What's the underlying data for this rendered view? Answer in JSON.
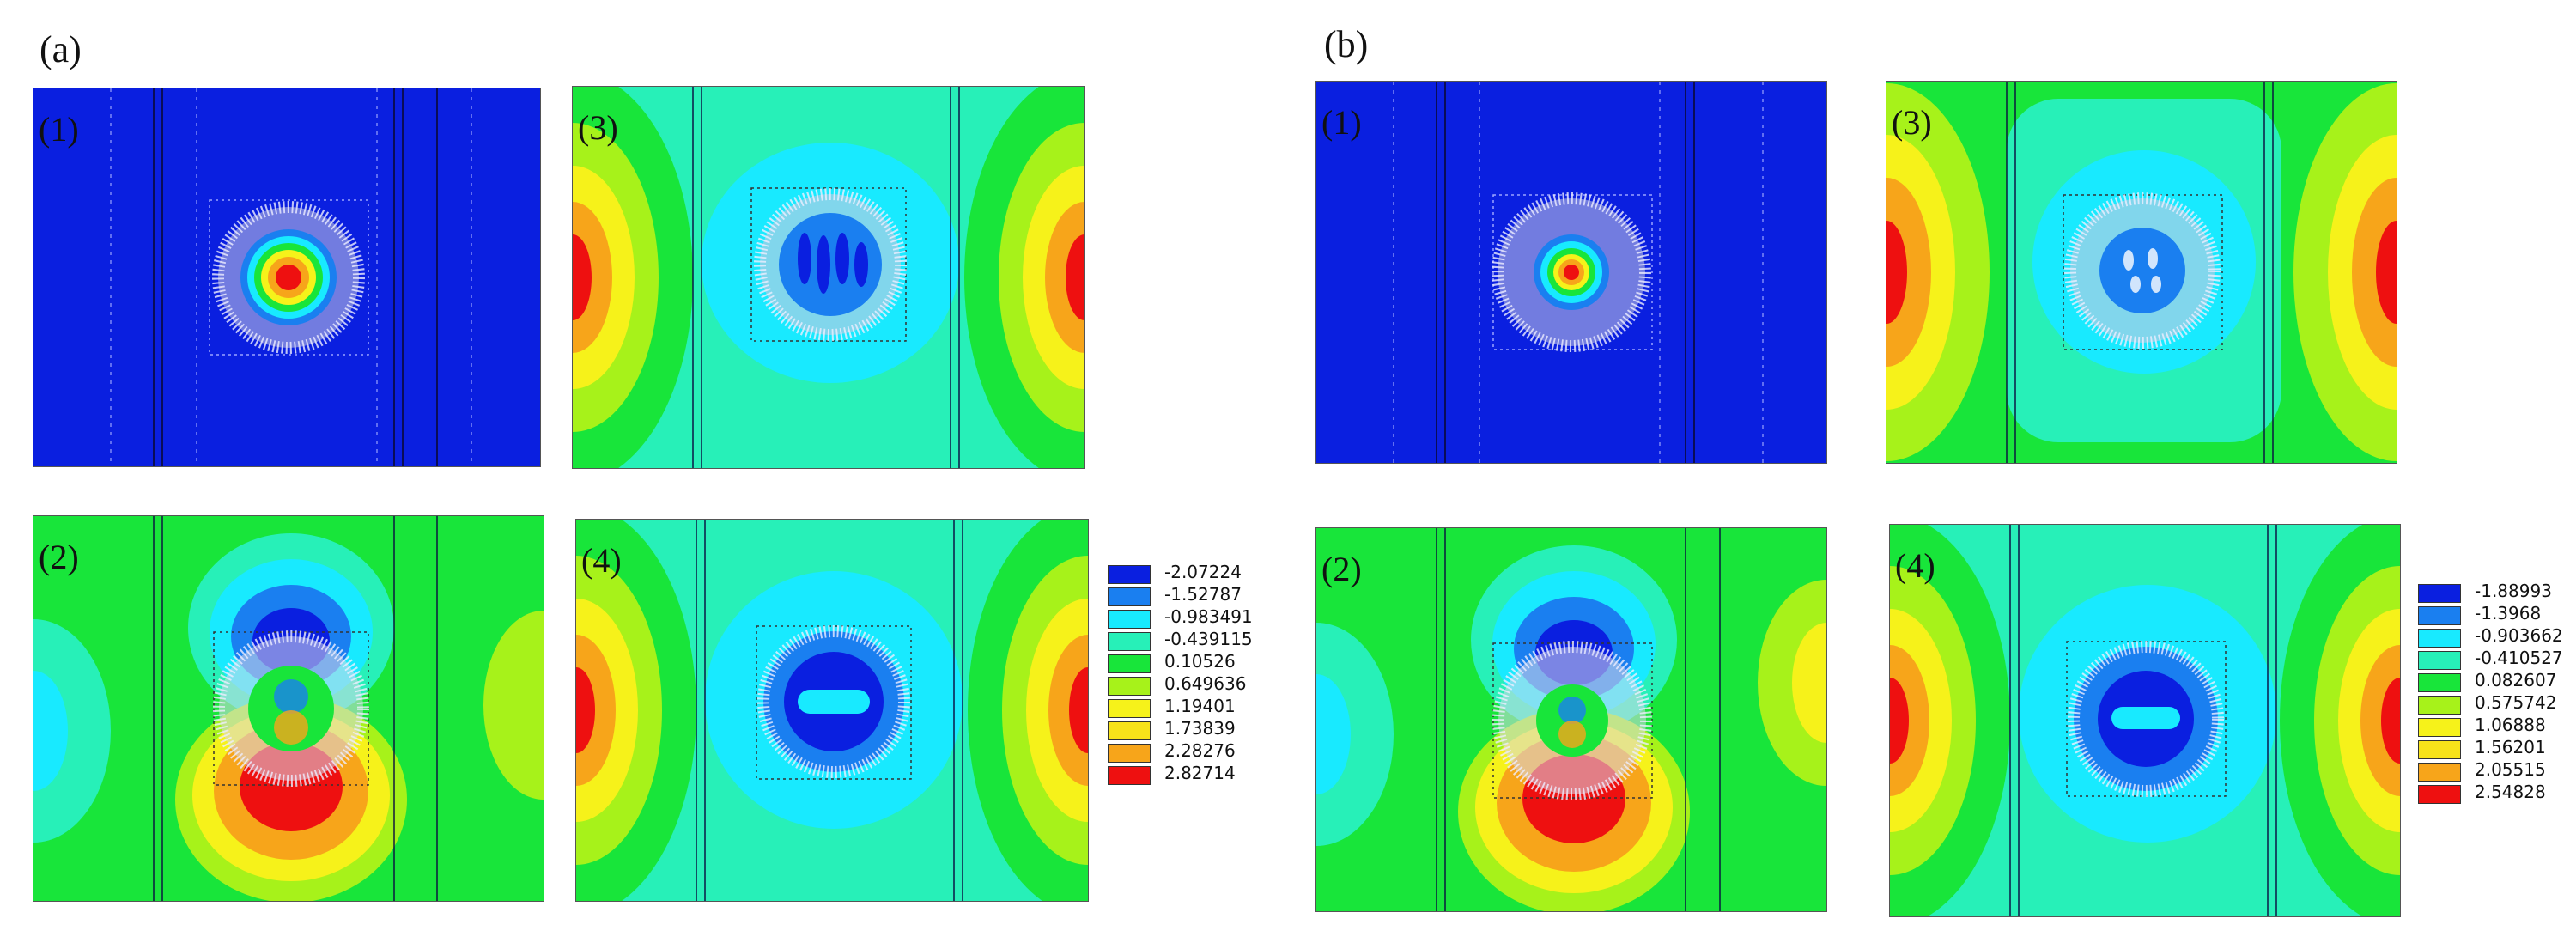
{
  "colors": {
    "deep_blue": "#0a1fe0",
    "blue": "#1a7ff0",
    "cyan": "#18eaff",
    "aqua": "#27f0b8",
    "green": "#18e53a",
    "lime": "#a7f21a",
    "yellow": "#f6f21a",
    "orange": "#f7a51a",
    "red": "#ee1010",
    "mesh": "#d8d8e8"
  },
  "groups": [
    {
      "label": "(a)",
      "panels": [
        {
          "label": "(1)",
          "pattern": "uniform-low"
        },
        {
          "label": "(3)",
          "pattern": "sides-high"
        },
        {
          "label": "(2)",
          "pattern": "vertical-dipole"
        },
        {
          "label": "(4)",
          "pattern": "sides-high-center-low"
        }
      ],
      "legend": [
        "-2.07224",
        "-1.52787",
        "-0.983491",
        "-0.439115",
        "0.10526",
        "0.649636",
        "1.19401",
        "1.73839",
        "2.28276",
        "2.82714"
      ]
    },
    {
      "label": "(b)",
      "panels": [
        {
          "label": "(1)",
          "pattern": "uniform-low"
        },
        {
          "label": "(3)",
          "pattern": "sides-high"
        },
        {
          "label": "(2)",
          "pattern": "vertical-dipole"
        },
        {
          "label": "(4)",
          "pattern": "sides-high-center-low"
        }
      ],
      "legend": [
        "-1.88993",
        "-1.3968",
        "-0.903662",
        "-0.410527",
        "0.082607",
        "0.575742",
        "1.06888",
        "1.56201",
        "2.05515",
        "2.54828"
      ]
    }
  ]
}
